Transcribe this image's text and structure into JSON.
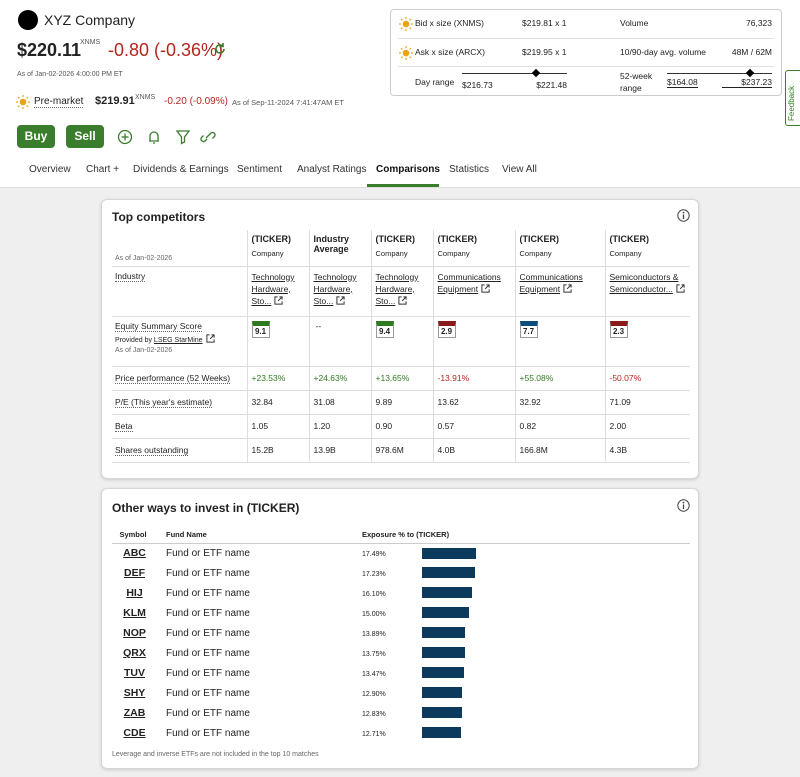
{
  "header": {
    "company": "XYZ Company",
    "price": "$220.11",
    "exchange": "XNMS",
    "change": "-0.80 (-0.36%)",
    "as_of": "As of Jan-02-2026 4:00:00 PM ET",
    "premarket_label": "Pre-market",
    "premarket_price": "$219.91",
    "premarket_exchange": "XNMS",
    "premarket_change": "-0.20 (-0.09%)",
    "premarket_as_of": "As of Sep-11-2024 7:41:47AM ET"
  },
  "buttons": {
    "buy": "Buy",
    "sell": "Sell"
  },
  "quote": {
    "bid_label": "Bid x size (XNMS)",
    "bid": "$219.81 x 1",
    "ask_label": "Ask x size (ARCX)",
    "ask": "$219.95 x 1",
    "volume_label": "Volume",
    "volume": "76,323",
    "avg_volume_label": "10/90-day avg. volume",
    "avg_volume": "48M / 62M",
    "day_range_label": "Day range",
    "day_low": "$216.73",
    "day_high": "$221.48",
    "week52_label": "52-week range",
    "week52_low": "$164.08",
    "week52_high": "$237.23"
  },
  "feedback": "Feedback",
  "tabs": {
    "items": [
      "Overview",
      "Chart +",
      "Dividends & Earnings",
      "Sentiment",
      "Analyst Ratings",
      "Comparisons",
      "Statistics",
      "View All"
    ],
    "active": 5
  },
  "competitors": {
    "title": "Top competitors",
    "as_of": "As of Jan-02-2026",
    "columns": [
      {
        "title": "(TICKER)",
        "subtitle": "Company"
      },
      {
        "title": "Industry Average"
      },
      {
        "title": "(TICKER)",
        "subtitle": "Company"
      },
      {
        "title": "(TICKER)",
        "subtitle": "Company"
      },
      {
        "title": "(TICKER)",
        "subtitle": "Company"
      },
      {
        "title": "(TICKER)",
        "subtitle": "Company"
      }
    ],
    "rows": [
      {
        "label": "Industry",
        "values": [
          "Technology Hardware, Sto...",
          "Technology Hardware, Sto...",
          "Technology Hardware, Sto...",
          "Communications Equipment",
          "Communications Equipment",
          "Semiconductors & Semiconductor..."
        ]
      },
      {
        "label": "Equity Summary Score",
        "provider_label": "Provided by",
        "provider": "LSEG StarMine",
        "as_of": "As of Jan-02-2026",
        "values": [
          {
            "score": "9.1",
            "color": "#2f7a1f"
          },
          {
            "score": "--"
          },
          {
            "score": "9.4",
            "color": "#2f7a1f"
          },
          {
            "score": "2.9",
            "color": "#8b1a1a"
          },
          {
            "score": "7.7",
            "color": "#0b4d7a"
          },
          {
            "score": "2.3",
            "color": "#8b1a1a"
          }
        ]
      },
      {
        "label": "Price performance (52 Weeks)",
        "values": [
          "+23.53%",
          "+24.63%",
          "+13.65%",
          "-13.91%",
          "+55.08%",
          "-50.07%"
        ]
      },
      {
        "label": "P/E (This year's estimate)",
        "values": [
          "32.84",
          "31.08",
          "9.89",
          "13.62",
          "32.92",
          "71.09"
        ]
      },
      {
        "label": "Beta",
        "values": [
          "1.05",
          "1.20",
          "0.90",
          "0.57",
          "0.82",
          "2.00"
        ]
      },
      {
        "label": "Shares outstanding",
        "values": [
          "15.2B",
          "13.9B",
          "978.6M",
          "4.0B",
          "166.8M",
          "4.3B"
        ]
      }
    ]
  },
  "funds": {
    "title": "Other ways to invest in (TICKER)",
    "headers": [
      "Symbol",
      "Fund Name",
      "Exposure % to (TICKER)"
    ],
    "bar_color": "#0b3a5c",
    "rows": [
      {
        "symbol": "ABC",
        "name": "Fund or ETF name",
        "exposure": 17.49,
        "exposure_label": "17.49%"
      },
      {
        "symbol": "DEF",
        "name": "Fund or ETF name",
        "exposure": 17.23,
        "exposure_label": "17.23%"
      },
      {
        "symbol": "HIJ",
        "name": "Fund or ETF name",
        "exposure": 16.1,
        "exposure_label": "16.10%"
      },
      {
        "symbol": "KLM",
        "name": "Fund or ETF name",
        "exposure": 15.0,
        "exposure_label": "15.00%"
      },
      {
        "symbol": "NOP",
        "name": "Fund or ETF name",
        "exposure": 13.89,
        "exposure_label": "13.89%"
      },
      {
        "symbol": "QRX",
        "name": "Fund or ETF name",
        "exposure": 13.75,
        "exposure_label": "13.75%"
      },
      {
        "symbol": "TUV",
        "name": "Fund or ETF name",
        "exposure": 13.47,
        "exposure_label": "13.47%"
      },
      {
        "symbol": "SHY",
        "name": "Fund or ETF name",
        "exposure": 12.9,
        "exposure_label": "12.90%"
      },
      {
        "symbol": "ZAB",
        "name": "Fund or ETF name",
        "exposure": 12.83,
        "exposure_label": "12.83%"
      },
      {
        "symbol": "CDE",
        "name": "Fund or ETF name",
        "exposure": 12.71,
        "exposure_label": "12.71%"
      }
    ],
    "footnote": "Leverage and inverse ETFs are not included in the top 10 matches"
  }
}
